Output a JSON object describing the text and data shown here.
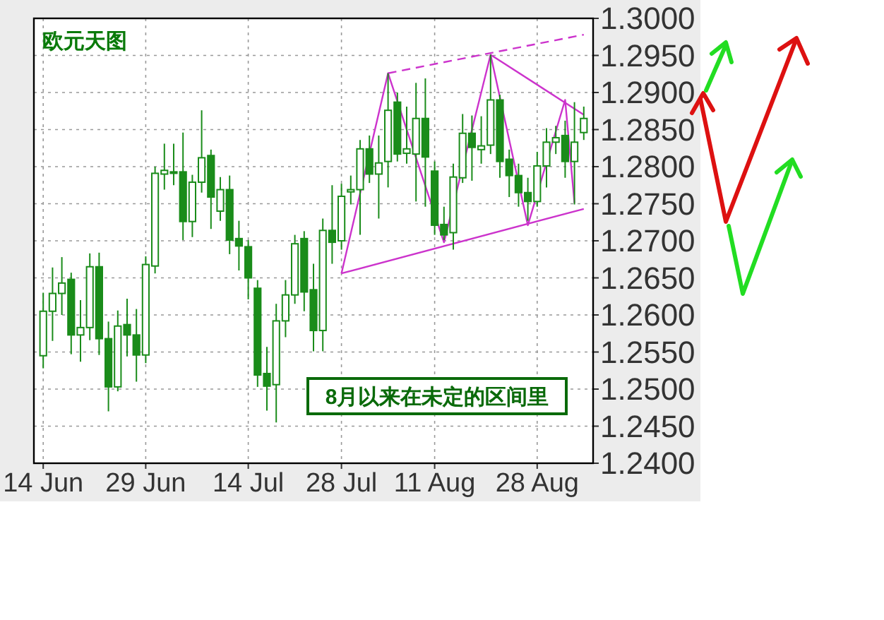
{
  "chart_data": {
    "type": "candlestick",
    "title": "欧元天图",
    "annotations": [
      "8月以来在未定的区间里"
    ],
    "color": "#1a8c1a",
    "grid": true,
    "categories": [
      "14 Jun",
      null,
      null,
      null,
      null,
      null,
      null,
      null,
      null,
      null,
      null,
      "29 Jun",
      null,
      null,
      null,
      null,
      null,
      null,
      null,
      null,
      null,
      null,
      "14 Jul",
      null,
      null,
      null,
      null,
      null,
      null,
      null,
      null,
      null,
      "28 Jul",
      null,
      null,
      null,
      null,
      null,
      null,
      null,
      null,
      null,
      "11 Aug",
      null,
      null,
      null,
      null,
      null,
      null,
      null,
      null,
      null,
      null,
      "28 Aug",
      null,
      null,
      null,
      null,
      null
    ],
    "ohlc": [
      [
        1.2545,
        1.263,
        1.2528,
        1.2605
      ],
      [
        1.2605,
        1.2664,
        1.2565,
        1.2629
      ],
      [
        1.2629,
        1.2678,
        1.26,
        1.2643
      ],
      [
        1.2648,
        1.2657,
        1.2547,
        1.2573
      ],
      [
        1.2573,
        1.262,
        1.2537,
        1.2583
      ],
      [
        1.2583,
        1.2683,
        1.2566,
        1.2665
      ],
      [
        1.2665,
        1.2684,
        1.2546,
        1.2568
      ],
      [
        1.2568,
        1.2591,
        1.247,
        1.2503
      ],
      [
        1.2503,
        1.2606,
        1.2497,
        1.2585
      ],
      [
        1.2587,
        1.2622,
        1.2544,
        1.2573
      ],
      [
        1.2573,
        1.2608,
        1.251,
        1.2546
      ],
      [
        1.2546,
        1.2679,
        1.2535,
        1.2668
      ],
      [
        1.2666,
        1.28,
        1.2656,
        1.2791
      ],
      [
        1.279,
        1.2831,
        1.2769,
        1.2795
      ],
      [
        1.2793,
        1.2831,
        1.2775,
        1.2791
      ],
      [
        1.2793,
        1.2846,
        1.2701,
        1.2726
      ],
      [
        1.2726,
        1.2789,
        1.2705,
        1.2779
      ],
      [
        1.2779,
        1.2876,
        1.2765,
        1.2812
      ],
      [
        1.2815,
        1.2823,
        1.2716,
        1.2759
      ],
      [
        1.274,
        1.2786,
        1.2727,
        1.2769
      ],
      [
        1.2769,
        1.2788,
        1.2682,
        1.2701
      ],
      [
        1.2703,
        1.2727,
        1.266,
        1.2693
      ],
      [
        1.2692,
        1.2701,
        1.2621,
        1.265
      ],
      [
        1.2636,
        1.2647,
        1.2503,
        1.2519
      ],
      [
        1.2521,
        1.2557,
        1.2471,
        1.2504
      ],
      [
        1.2506,
        1.2615,
        1.2455,
        1.2592
      ],
      [
        1.2592,
        1.2647,
        1.257,
        1.2627
      ],
      [
        1.2627,
        1.2708,
        1.2615,
        1.2696
      ],
      [
        1.2703,
        1.2713,
        1.2605,
        1.2631
      ],
      [
        1.2634,
        1.2669,
        1.2551,
        1.2579
      ],
      [
        1.2579,
        1.273,
        1.2551,
        1.2714
      ],
      [
        1.2714,
        1.2775,
        1.2669,
        1.2698
      ],
      [
        1.27,
        1.2777,
        1.2688,
        1.276
      ],
      [
        1.2766,
        1.2788,
        1.2749,
        1.2769
      ],
      [
        1.2769,
        1.2836,
        1.2708,
        1.2824
      ],
      [
        1.2824,
        1.2842,
        1.2778,
        1.279
      ],
      [
        1.279,
        1.2842,
        1.273,
        1.2805
      ],
      [
        1.2807,
        1.2926,
        1.2772,
        1.2876
      ],
      [
        1.2887,
        1.29,
        1.2807,
        1.2817
      ],
      [
        1.2818,
        1.2881,
        1.2804,
        1.2824
      ],
      [
        1.2817,
        1.2913,
        1.2753,
        1.2865
      ],
      [
        1.2865,
        1.2919,
        1.2746,
        1.2813
      ],
      [
        1.2794,
        1.2807,
        1.2708,
        1.2721
      ],
      [
        1.2722,
        1.2746,
        1.2701,
        1.2708
      ],
      [
        1.2711,
        1.2804,
        1.2688,
        1.2786
      ],
      [
        1.2785,
        1.2871,
        1.2778,
        1.2845
      ],
      [
        1.2845,
        1.2869,
        1.2781,
        1.2826
      ],
      [
        1.2823,
        1.2868,
        1.2804,
        1.2828
      ],
      [
        1.2829,
        1.2951,
        1.2817,
        1.289
      ],
      [
        1.289,
        1.2897,
        1.2785,
        1.2807
      ],
      [
        1.281,
        1.2823,
        1.2759,
        1.2788
      ],
      [
        1.2788,
        1.2804,
        1.2746,
        1.2765
      ],
      [
        1.2765,
        1.2785,
        1.2727,
        1.2753
      ],
      [
        1.2753,
        1.282,
        1.2746,
        1.2801
      ],
      [
        1.2801,
        1.2852,
        1.2772,
        1.2833
      ],
      [
        1.2833,
        1.2855,
        1.2817,
        1.2839
      ],
      [
        1.2842,
        1.2862,
        1.2785,
        1.2807
      ],
      [
        1.2807,
        1.2887,
        1.2749,
        1.2833
      ],
      [
        1.2846,
        1.2881,
        1.2836,
        1.2865
      ]
    ],
    "series": [
      {
        "type": "line",
        "color": "#cc33cc",
        "line_style": "solid",
        "values": [
          null,
          null,
          null,
          null,
          null,
          null,
          null,
          null,
          null,
          null,
          null,
          null,
          null,
          null,
          null,
          null,
          null,
          null,
          null,
          null,
          null,
          null,
          null,
          null,
          null,
          null,
          null,
          null,
          null,
          null,
          null,
          null,
          1.2656,
          null,
          null,
          null,
          null,
          1.2926,
          null,
          null,
          null,
          null,
          null,
          1.2698,
          null,
          null,
          null,
          null,
          1.2951,
          null,
          null,
          null,
          1.2721,
          null,
          null,
          null,
          1.289,
          1.2751,
          null
        ]
      },
      {
        "type": "line",
        "color": "#cc33cc",
        "line_style": "solid",
        "values": [
          null,
          null,
          null,
          null,
          null,
          null,
          null,
          null,
          null,
          null,
          null,
          null,
          null,
          null,
          null,
          null,
          null,
          null,
          null,
          null,
          null,
          null,
          null,
          null,
          null,
          null,
          null,
          null,
          null,
          null,
          null,
          null,
          1.2656,
          null,
          null,
          null,
          null,
          null,
          null,
          null,
          null,
          null,
          null,
          null,
          null,
          null,
          null,
          null,
          null,
          null,
          null,
          null,
          null,
          null,
          null,
          null,
          null,
          null,
          1.2743
        ]
      },
      {
        "type": "line",
        "color": "#cc33cc",
        "line_style": "dashed",
        "values": [
          null,
          null,
          null,
          null,
          null,
          null,
          null,
          null,
          null,
          null,
          null,
          null,
          null,
          null,
          null,
          null,
          null,
          null,
          null,
          null,
          null,
          null,
          null,
          null,
          null,
          null,
          null,
          null,
          null,
          null,
          null,
          null,
          null,
          null,
          null,
          null,
          null,
          1.2926,
          null,
          null,
          null,
          null,
          null,
          null,
          null,
          null,
          null,
          null,
          null,
          null,
          null,
          null,
          null,
          null,
          null,
          null,
          null,
          null,
          1.2978
        ]
      },
      {
        "type": "line",
        "color": "#cc33cc",
        "line_style": "solid",
        "values": [
          null,
          null,
          null,
          null,
          null,
          null,
          null,
          null,
          null,
          null,
          null,
          null,
          null,
          null,
          null,
          null,
          null,
          null,
          null,
          null,
          null,
          null,
          null,
          null,
          null,
          null,
          null,
          null,
          null,
          null,
          null,
          null,
          null,
          null,
          null,
          null,
          null,
          null,
          null,
          null,
          null,
          null,
          null,
          null,
          null,
          null,
          null,
          null,
          1.2951,
          null,
          null,
          null,
          null,
          null,
          null,
          null,
          null,
          null,
          1.287
        ]
      }
    ],
    "ylim": [
      1.24,
      1.3
    ],
    "yticks": [
      {
        "value": 1.24,
        "label": "1.2400"
      },
      {
        "value": 1.245,
        "label": "1.2450"
      },
      {
        "value": 1.25,
        "label": "1.2500"
      },
      {
        "value": 1.255,
        "label": "1.2550"
      },
      {
        "value": 1.26,
        "label": "1.2600"
      },
      {
        "value": 1.265,
        "label": "1.2650"
      },
      {
        "value": 1.27,
        "label": "1.2700"
      },
      {
        "value": 1.275,
        "label": "1.2750"
      },
      {
        "value": 1.28,
        "label": "1.2800"
      },
      {
        "value": 1.285,
        "label": "1.2850"
      },
      {
        "value": 1.29,
        "label": "1.2900"
      },
      {
        "value": 1.295,
        "label": "1.2950"
      },
      {
        "value": 1.3,
        "label": "1.3000"
      }
    ]
  }
}
